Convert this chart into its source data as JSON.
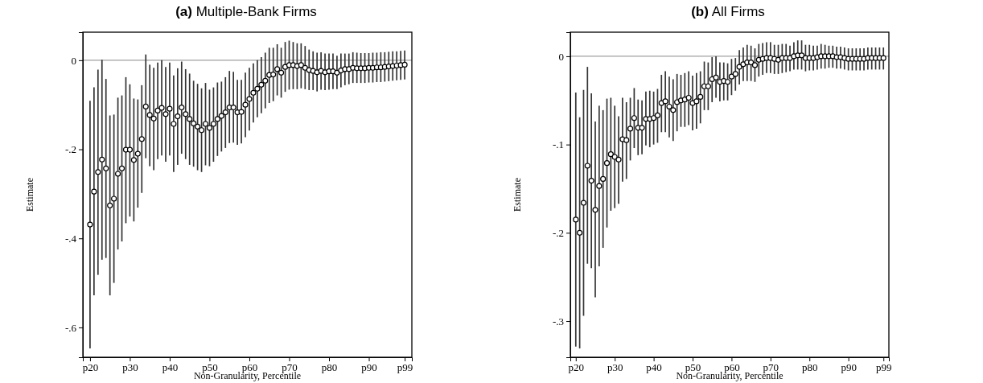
{
  "chart_data": [
    {
      "type": "scatter",
      "title": "(a) Multiple-Bank Firms",
      "xlabel": "Non-Granularity, Percentile",
      "ylabel": "Estimate",
      "marker": "circle",
      "grid": false,
      "ylim": [
        -0.667,
        0.063
      ],
      "yticks": [
        {
          "value": 0,
          "label": "0"
        },
        {
          "value": -0.2,
          "label": "-.2"
        },
        {
          "value": -0.4,
          "label": "-.4"
        },
        {
          "value": -0.6,
          "label": "-.6"
        }
      ],
      "ref_lines": [
        {
          "axis": "y",
          "value": 0,
          "color": "#a0a0a0"
        }
      ],
      "categories": [
        "p20",
        null,
        null,
        null,
        null,
        null,
        null,
        null,
        null,
        null,
        "p30",
        null,
        null,
        null,
        null,
        null,
        null,
        null,
        null,
        null,
        "p40",
        null,
        null,
        null,
        null,
        null,
        null,
        null,
        null,
        null,
        "p50",
        null,
        null,
        null,
        null,
        null,
        null,
        null,
        null,
        null,
        "p60",
        null,
        null,
        null,
        null,
        null,
        null,
        null,
        null,
        null,
        "p70",
        null,
        null,
        null,
        null,
        null,
        null,
        null,
        null,
        null,
        "p80",
        null,
        null,
        null,
        null,
        null,
        null,
        null,
        null,
        null,
        "p90",
        null,
        null,
        null,
        null,
        null,
        null,
        null,
        null,
        "p99"
      ],
      "values": [
        -0.369,
        -0.295,
        -0.251,
        -0.223,
        -0.243,
        -0.326,
        -0.311,
        -0.255,
        -0.243,
        -0.201,
        -0.201,
        -0.224,
        -0.21,
        -0.177,
        -0.104,
        -0.123,
        -0.131,
        -0.113,
        -0.107,
        -0.121,
        -0.109,
        -0.143,
        -0.126,
        -0.106,
        -0.121,
        -0.132,
        -0.142,
        -0.149,
        -0.157,
        -0.143,
        -0.152,
        -0.143,
        -0.132,
        -0.125,
        -0.117,
        -0.106,
        -0.106,
        -0.117,
        -0.116,
        -0.1,
        -0.087,
        -0.073,
        -0.064,
        -0.055,
        -0.046,
        -0.033,
        -0.032,
        -0.02,
        -0.028,
        -0.015,
        -0.011,
        -0.011,
        -0.013,
        -0.011,
        -0.017,
        -0.022,
        -0.024,
        -0.027,
        -0.024,
        -0.027,
        -0.025,
        -0.025,
        -0.028,
        -0.023,
        -0.02,
        -0.02,
        -0.017,
        -0.018,
        -0.018,
        -0.018,
        -0.017,
        -0.017,
        -0.016,
        -0.016,
        -0.015,
        -0.014,
        -0.013,
        -0.012,
        -0.011,
        -0.01
      ],
      "errors": [
        [
          -0.647,
          -0.091
        ],
        [
          -0.528,
          -0.061
        ],
        [
          -0.482,
          -0.021
        ],
        [
          -0.448,
          0.001
        ],
        [
          -0.444,
          -0.042
        ],
        [
          -0.528,
          -0.124
        ],
        [
          -0.5,
          -0.122
        ],
        [
          -0.425,
          -0.084
        ],
        [
          -0.407,
          -0.079
        ],
        [
          -0.366,
          -0.038
        ],
        [
          -0.351,
          -0.054
        ],
        [
          -0.362,
          -0.086
        ],
        [
          -0.331,
          -0.088
        ],
        [
          -0.298,
          -0.056
        ],
        [
          -0.22,
          0.013
        ],
        [
          -0.238,
          -0.01
        ],
        [
          -0.247,
          -0.017
        ],
        [
          -0.222,
          -0.005
        ],
        [
          -0.214,
          0
        ],
        [
          -0.228,
          -0.015
        ],
        [
          -0.214,
          -0.005
        ],
        [
          -0.251,
          -0.034
        ],
        [
          -0.235,
          -0.018
        ],
        [
          -0.21,
          -0.003
        ],
        [
          -0.222,
          -0.02
        ],
        [
          -0.235,
          -0.03
        ],
        [
          -0.239,
          -0.046
        ],
        [
          -0.247,
          -0.053
        ],
        [
          -0.251,
          -0.063
        ],
        [
          -0.236,
          -0.051
        ],
        [
          -0.238,
          -0.066
        ],
        [
          -0.228,
          -0.061
        ],
        [
          -0.215,
          -0.05
        ],
        [
          -0.205,
          -0.048
        ],
        [
          -0.197,
          -0.038
        ],
        [
          -0.186,
          -0.024
        ],
        [
          -0.185,
          -0.026
        ],
        [
          -0.19,
          -0.044
        ],
        [
          -0.187,
          -0.044
        ],
        [
          -0.173,
          -0.028
        ],
        [
          -0.158,
          -0.017
        ],
        [
          -0.14,
          -0.007
        ],
        [
          -0.128,
          0
        ],
        [
          -0.119,
          0.007
        ],
        [
          -0.108,
          0.017
        ],
        [
          -0.096,
          0.028
        ],
        [
          -0.092,
          0.028
        ],
        [
          -0.079,
          0.036
        ],
        [
          -0.084,
          0.028
        ],
        [
          -0.071,
          0.041
        ],
        [
          -0.066,
          0.044
        ],
        [
          -0.065,
          0.041
        ],
        [
          -0.065,
          0.038
        ],
        [
          -0.063,
          0.038
        ],
        [
          -0.065,
          0.032
        ],
        [
          -0.067,
          0.024
        ],
        [
          -0.067,
          0.02
        ],
        [
          -0.07,
          0.017
        ],
        [
          -0.066,
          0.018
        ],
        [
          -0.067,
          0.015
        ],
        [
          -0.066,
          0.015
        ],
        [
          -0.065,
          0.015
        ],
        [
          -0.065,
          0.01
        ],
        [
          -0.061,
          0.015
        ],
        [
          -0.056,
          0.015
        ],
        [
          -0.054,
          0.015
        ],
        [
          -0.051,
          0.018
        ],
        [
          -0.051,
          0.017
        ],
        [
          -0.051,
          0.016
        ],
        [
          -0.051,
          0.016
        ],
        [
          -0.05,
          0.016
        ],
        [
          -0.05,
          0.017
        ],
        [
          -0.049,
          0.017
        ],
        [
          -0.049,
          0.018
        ],
        [
          -0.048,
          0.018
        ],
        [
          -0.047,
          0.019
        ],
        [
          -0.046,
          0.02
        ],
        [
          -0.045,
          0.02
        ],
        [
          -0.044,
          0.021
        ],
        [
          -0.043,
          0.022
        ]
      ]
    },
    {
      "type": "scatter",
      "title": "(b) All Firms",
      "xlabel": "Non-Granularity, Percentile",
      "ylabel": "Estimate",
      "marker": "circle",
      "grid": false,
      "ylim": [
        -0.341,
        0.0273
      ],
      "yticks": [
        {
          "value": 0,
          "label": "0"
        },
        {
          "value": -0.1,
          "label": "-.1"
        },
        {
          "value": -0.2,
          "label": "-.2"
        },
        {
          "value": -0.3,
          "label": "-.3"
        }
      ],
      "ref_lines": [
        {
          "axis": "y",
          "value": 0,
          "color": "#a0a0a0"
        }
      ],
      "categories": [
        "p20",
        null,
        null,
        null,
        null,
        null,
        null,
        null,
        null,
        null,
        "p30",
        null,
        null,
        null,
        null,
        null,
        null,
        null,
        null,
        null,
        "p40",
        null,
        null,
        null,
        null,
        null,
        null,
        null,
        null,
        null,
        "p50",
        null,
        null,
        null,
        null,
        null,
        null,
        null,
        null,
        null,
        "p60",
        null,
        null,
        null,
        null,
        null,
        null,
        null,
        null,
        null,
        "p70",
        null,
        null,
        null,
        null,
        null,
        null,
        null,
        null,
        null,
        "p80",
        null,
        null,
        null,
        null,
        null,
        null,
        null,
        null,
        null,
        "p90",
        null,
        null,
        null,
        null,
        null,
        null,
        null,
        null,
        "p99"
      ],
      "values": [
        -0.185,
        -0.2,
        -0.166,
        -0.124,
        -0.141,
        -0.174,
        -0.147,
        -0.139,
        -0.121,
        -0.111,
        -0.114,
        -0.117,
        -0.094,
        -0.095,
        -0.082,
        -0.07,
        -0.081,
        -0.081,
        -0.071,
        -0.071,
        -0.07,
        -0.067,
        -0.053,
        -0.051,
        -0.057,
        -0.061,
        -0.052,
        -0.05,
        -0.049,
        -0.047,
        -0.053,
        -0.051,
        -0.046,
        -0.034,
        -0.034,
        -0.026,
        -0.024,
        -0.029,
        -0.028,
        -0.029,
        -0.023,
        -0.02,
        -0.012,
        -0.009,
        -0.007,
        -0.007,
        -0.01,
        -0.004,
        -0.003,
        -0.002,
        -0.002,
        -0.003,
        -0.004,
        -0.002,
        -0.002,
        -0.002,
        0,
        0.001,
        0.001,
        -0.002,
        -0.002,
        -0.002,
        -0.001,
        0,
        0,
        0,
        0,
        -0.001,
        -0.001,
        -0.002,
        -0.003,
        -0.003,
        -0.003,
        -0.003,
        -0.003,
        -0.002,
        -0.002,
        -0.002,
        -0.002,
        -0.002
      ],
      "errors": [
        [
          -0.329,
          -0.041
        ],
        [
          -0.331,
          -0.069
        ],
        [
          -0.294,
          -0.038
        ],
        [
          -0.235,
          -0.012
        ],
        [
          -0.24,
          -0.042
        ],
        [
          -0.273,
          -0.074
        ],
        [
          -0.238,
          -0.056
        ],
        [
          -0.217,
          -0.061
        ],
        [
          -0.194,
          -0.048
        ],
        [
          -0.175,
          -0.047
        ],
        [
          -0.172,
          -0.056
        ],
        [
          -0.167,
          -0.068
        ],
        [
          -0.142,
          -0.047
        ],
        [
          -0.139,
          -0.052
        ],
        [
          -0.118,
          -0.047
        ],
        [
          -0.104,
          -0.036
        ],
        [
          -0.112,
          -0.049
        ],
        [
          -0.111,
          -0.05
        ],
        [
          -0.101,
          -0.04
        ],
        [
          -0.103,
          -0.039
        ],
        [
          -0.1,
          -0.04
        ],
        [
          -0.098,
          -0.037
        ],
        [
          -0.086,
          -0.021
        ],
        [
          -0.086,
          -0.017
        ],
        [
          -0.092,
          -0.023
        ],
        [
          -0.096,
          -0.026
        ],
        [
          -0.085,
          -0.02
        ],
        [
          -0.08,
          -0.021
        ],
        [
          -0.08,
          -0.019
        ],
        [
          -0.078,
          -0.017
        ],
        [
          -0.084,
          -0.022
        ],
        [
          -0.082,
          -0.019
        ],
        [
          -0.076,
          -0.017
        ],
        [
          -0.061,
          -0.006
        ],
        [
          -0.061,
          -0.007
        ],
        [
          -0.052,
          -0.001
        ],
        [
          -0.047,
          0
        ],
        [
          -0.051,
          -0.007
        ],
        [
          -0.05,
          -0.007
        ],
        [
          -0.05,
          -0.008
        ],
        [
          -0.044,
          -0.003
        ],
        [
          -0.039,
          -0.002
        ],
        [
          -0.032,
          0.007
        ],
        [
          -0.028,
          0.01
        ],
        [
          -0.028,
          0.013
        ],
        [
          -0.028,
          0.012
        ],
        [
          -0.029,
          0.009
        ],
        [
          -0.023,
          0.014
        ],
        [
          -0.021,
          0.015
        ],
        [
          -0.019,
          0.016
        ],
        [
          -0.019,
          0.016
        ],
        [
          -0.02,
          0.013
        ],
        [
          -0.02,
          0.013
        ],
        [
          -0.019,
          0.014
        ],
        [
          -0.018,
          0.014
        ],
        [
          -0.017,
          0.012
        ],
        [
          -0.015,
          0.016
        ],
        [
          -0.015,
          0.018
        ],
        [
          -0.015,
          0.018
        ],
        [
          -0.017,
          0.013
        ],
        [
          -0.016,
          0.013
        ],
        [
          -0.016,
          0.012
        ],
        [
          -0.015,
          0.012
        ],
        [
          -0.014,
          0.014
        ],
        [
          -0.014,
          0.013
        ],
        [
          -0.013,
          0.012
        ],
        [
          -0.013,
          0.012
        ],
        [
          -0.014,
          0.011
        ],
        [
          -0.014,
          0.011
        ],
        [
          -0.015,
          0.01
        ],
        [
          -0.016,
          0.009
        ],
        [
          -0.016,
          0.009
        ],
        [
          -0.016,
          0.009
        ],
        [
          -0.016,
          0.009
        ],
        [
          -0.016,
          0.009
        ],
        [
          -0.015,
          0.01
        ],
        [
          -0.015,
          0.01
        ],
        [
          -0.015,
          0.01
        ],
        [
          -0.015,
          0.01
        ],
        [
          -0.015,
          0.01
        ]
      ]
    }
  ]
}
